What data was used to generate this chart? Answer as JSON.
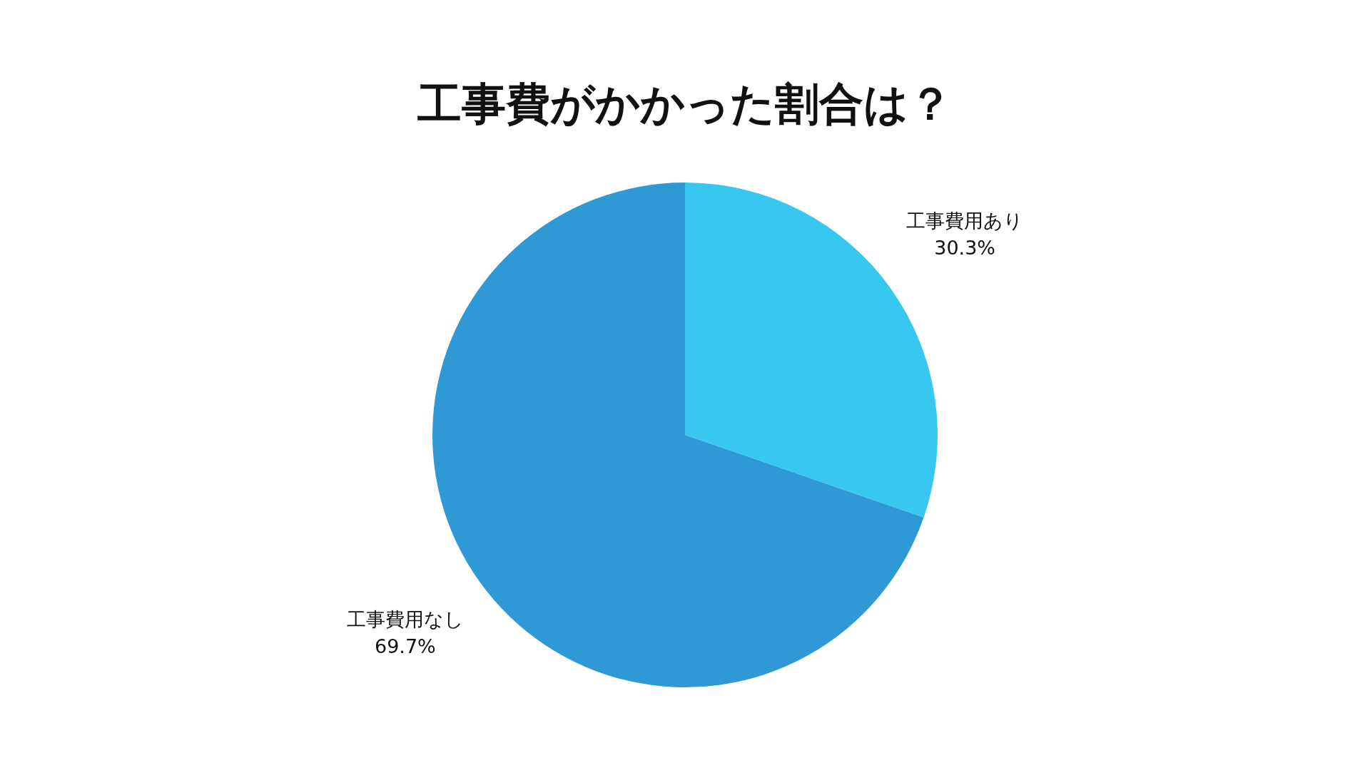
{
  "chart_data": {
    "type": "pie",
    "title": "工事費がかかった割合は？",
    "categories": [
      "工事費用あり",
      "工事費用なし"
    ],
    "values": [
      30.3,
      69.7
    ],
    "colors": [
      "#38c7ef",
      "#2f99d5"
    ],
    "value_labels": [
      "30.3%",
      "69.7%"
    ]
  }
}
